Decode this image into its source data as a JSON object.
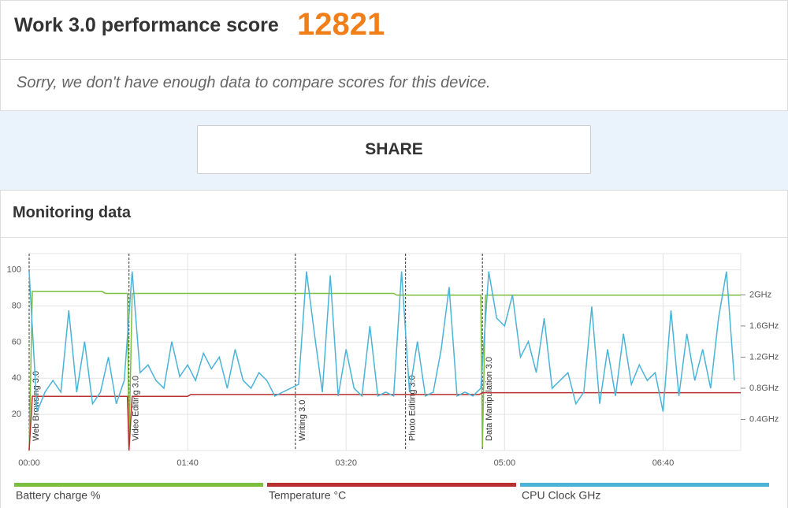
{
  "header": {
    "title": "Work 3.0 performance score",
    "score": 12821
  },
  "notice": "Sorry, we don't have enough data to compare scores for this device.",
  "share_button": "SHARE",
  "monitoring": {
    "title": "Monitoring data"
  },
  "chart_data": {
    "type": "line",
    "xlim": [
      0,
      449
    ],
    "xticks": [
      {
        "value": 0,
        "label": "00:00"
      },
      {
        "value": 100,
        "label": "01:40"
      },
      {
        "value": 200,
        "label": "03:20"
      },
      {
        "value": 300,
        "label": "05:00"
      },
      {
        "value": 400,
        "label": "06:40"
      }
    ],
    "ylim": [
      0,
      109
    ],
    "yticks": [
      20,
      40,
      60,
      80,
      100
    ],
    "y2lim": [
      0,
      2.53
    ],
    "y2ticks": [
      {
        "value": 0.4,
        "label": "0.4GHz"
      },
      {
        "value": 0.8,
        "label": "0.8GHz"
      },
      {
        "value": 1.2,
        "label": "1.2GHz"
      },
      {
        "value": 1.6,
        "label": "1.6GHz"
      },
      {
        "value": 2,
        "label": "2GHz"
      }
    ],
    "grid": true,
    "markers": [
      {
        "x": 0,
        "label": "Web Browsing 3.0"
      },
      {
        "x": 63,
        "label": "Video Editing 3.0"
      },
      {
        "x": 168,
        "label": "Writing 3.0"
      },
      {
        "x": 237.5,
        "label": "Photo Editing 3.0"
      },
      {
        "x": 286,
        "label": "Data Manipulation 3.0"
      }
    ],
    "series": [
      {
        "name": "Battery charge %",
        "color": "#7cbf3f",
        "x": [
          0,
          2,
          46,
          48,
          62,
          63,
          65,
          230,
          232,
          285,
          286,
          288,
          449
        ],
        "values": [
          0,
          88,
          88,
          87,
          87,
          2,
          87,
          87,
          86,
          86,
          2,
          86,
          86
        ]
      },
      {
        "name": "Temperature °C",
        "color": "#b8302f",
        "x": [
          0,
          2,
          62,
          63,
          65,
          100,
          102,
          284,
          286,
          449
        ],
        "values": [
          0,
          30,
          30,
          0,
          30,
          30,
          31,
          31,
          32,
          32
        ]
      },
      {
        "name": "CPU Clock GHz",
        "color": "#4bb3d8",
        "axis": "y2",
        "x": [
          0,
          5,
          10,
          15,
          20,
          25,
          30,
          35,
          40,
          45,
          50,
          55,
          60,
          65,
          70,
          75,
          80,
          85,
          90,
          95,
          100,
          105,
          110,
          115,
          120,
          125,
          130,
          135,
          140,
          145,
          150,
          155,
          160,
          165,
          170,
          175,
          180,
          185,
          190,
          195,
          200,
          205,
          210,
          215,
          220,
          225,
          230,
          235,
          240,
          245,
          250,
          255,
          260,
          265,
          270,
          275,
          280,
          285,
          290,
          295,
          300,
          305,
          310,
          315,
          320,
          325,
          330,
          335,
          340,
          345,
          350,
          355,
          360,
          365,
          370,
          375,
          380,
          385,
          390,
          395,
          400,
          405,
          410,
          415,
          420,
          425,
          430,
          435,
          440,
          445
        ],
        "values": [
          2.3,
          0.5,
          0.75,
          0.9,
          0.75,
          1.8,
          0.75,
          1.4,
          0.6,
          0.75,
          1.2,
          0.6,
          0.9,
          2.3,
          1.0,
          1.1,
          0.9,
          0.8,
          1.4,
          0.95,
          1.1,
          0.9,
          1.25,
          1.05,
          1.2,
          0.8,
          1.3,
          0.9,
          0.8,
          1.0,
          0.9,
          0.7,
          0.75,
          0.8,
          0.85,
          2.3,
          1.5,
          0.75,
          2.25,
          0.7,
          1.3,
          0.8,
          0.7,
          1.6,
          0.7,
          0.75,
          0.7,
          2.3,
          0.75,
          1.4,
          0.7,
          0.75,
          1.3,
          2.1,
          0.7,
          0.75,
          0.7,
          0.8,
          2.3,
          1.7,
          1.6,
          2.0,
          1.2,
          1.4,
          1.0,
          1.7,
          0.8,
          0.9,
          1.0,
          0.6,
          0.75,
          1.85,
          0.6,
          1.3,
          0.7,
          1.5,
          0.85,
          1.1,
          0.9,
          1.0,
          0.5,
          1.8,
          0.7,
          1.5,
          0.9,
          1.3,
          0.8,
          1.7,
          2.3,
          0.9
        ]
      }
    ]
  }
}
